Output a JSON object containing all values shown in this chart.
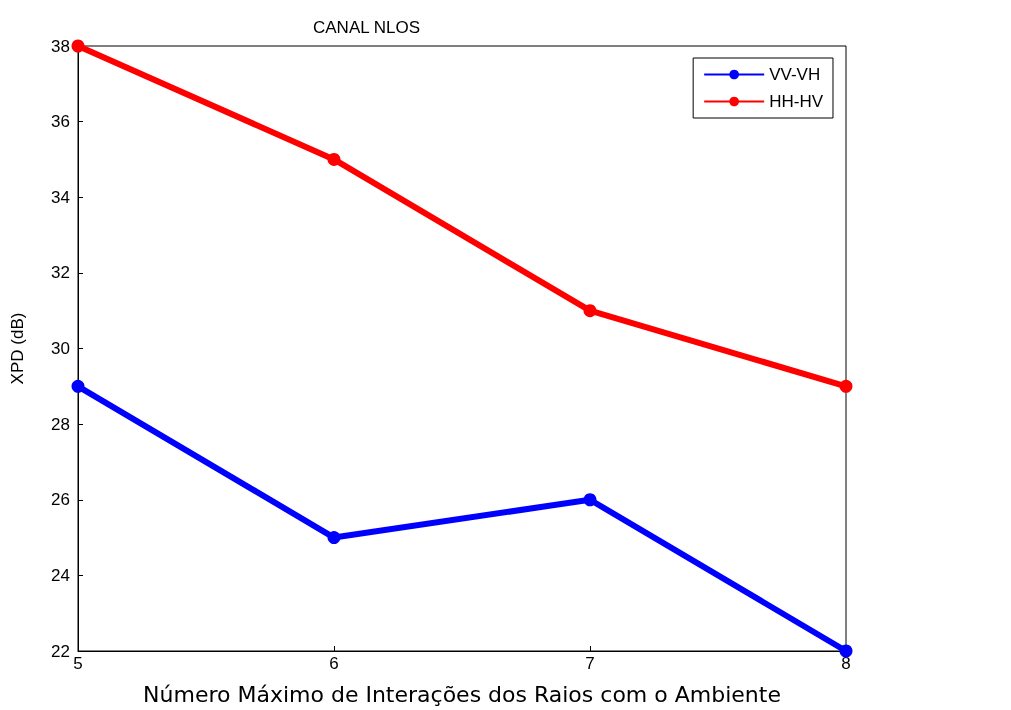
{
  "chart_data": {
    "type": "line",
    "title": "CANAL NLOS",
    "xlabel": "Número Máximo de Interações dos Raios com o Ambiente",
    "ylabel": "XPD (dB)",
    "x": [
      5,
      6,
      7,
      8
    ],
    "series": [
      {
        "name": "VV-VH",
        "color": "#0000ff",
        "values": [
          29,
          25,
          26,
          22
        ]
      },
      {
        "name": "HH-HV",
        "color": "#ff0000",
        "values": [
          38,
          35,
          31,
          29
        ]
      }
    ],
    "xlim": [
      5,
      8
    ],
    "xticks": [
      5,
      6,
      7,
      8
    ],
    "ylim": [
      22,
      38
    ],
    "yticks": [
      22,
      24,
      26,
      28,
      30,
      32,
      34,
      36,
      38
    ],
    "grid": false,
    "legend": "top right",
    "marker": "circle",
    "line_style": "solid"
  }
}
